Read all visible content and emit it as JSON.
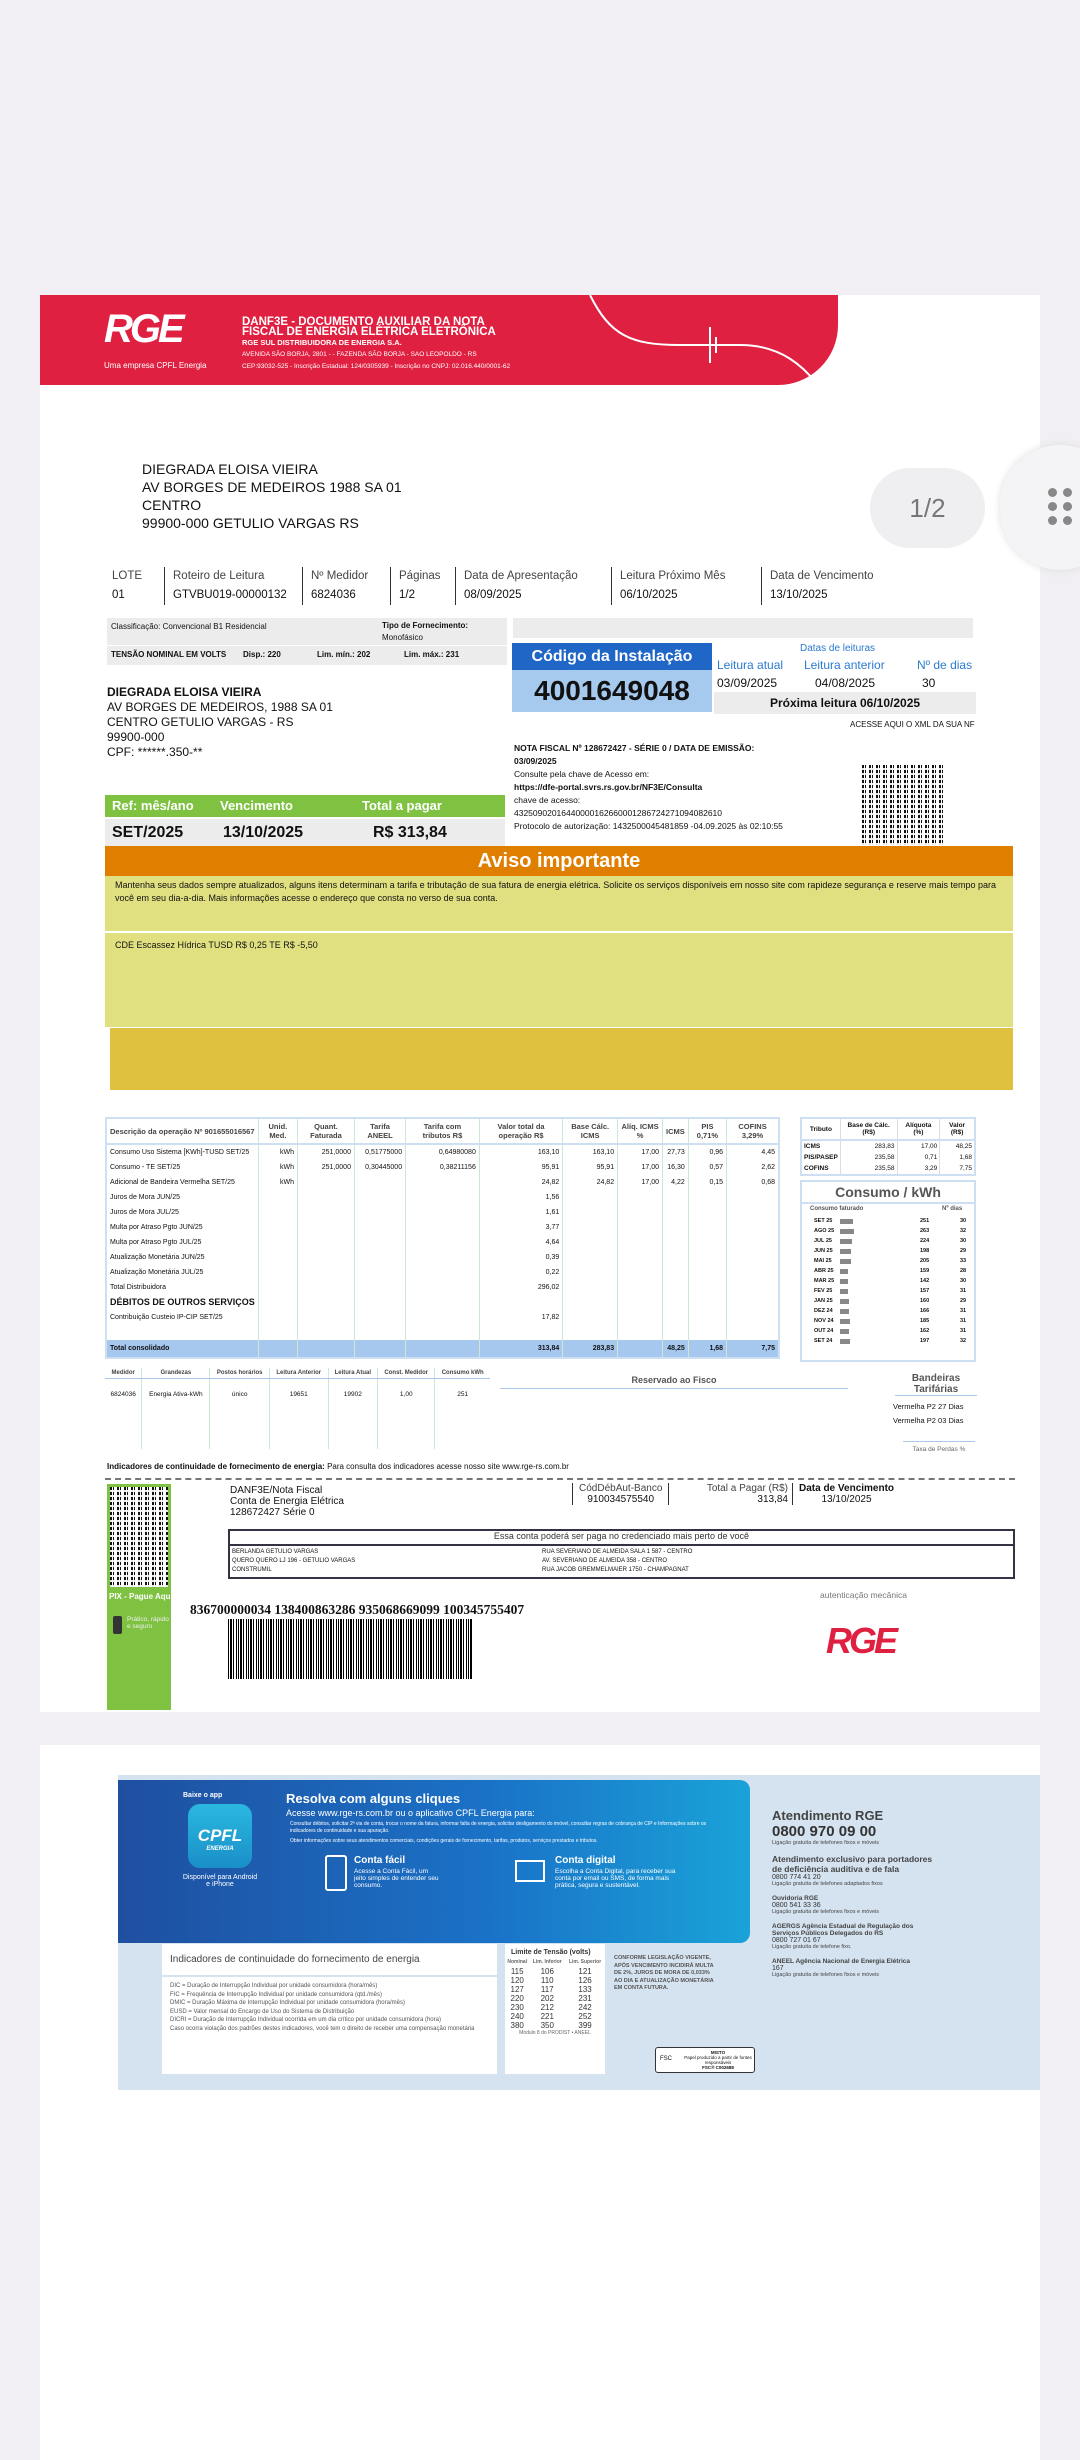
{
  "viewer": {
    "page_indicator": "1/2"
  },
  "header": {
    "logo": "RGE",
    "logo_sub": "Uma empresa CPFL Energia",
    "title1": "DANF3E - DOCUMENTO AUXILIAR DA NOTA",
    "title2": "FISCAL DE ENERGIA ELÉTRICA ELETRÔNICA",
    "company": "RGE SUL DISTRIBUIDORA DE ENERGIA S.A.",
    "address": "AVENIDA SÃO BORJA, 2801 - - FAZENDA SÃO BORJA - SAO LEOPOLDO - RS",
    "cep": "CEP:93032-525 - Inscrição Estadual: 124/0305939 - Inscrição no CNPJ: 02.016.440/0001-62"
  },
  "mail_address": [
    "DIEGRADA ELOISA VIEIRA",
    "AV BORGES DE MEDEIROS 1988 SA 01",
    "CENTRO",
    "99900-000 GETULIO VARGAS RS"
  ],
  "info_row": [
    {
      "label": "LOTE",
      "value": "01"
    },
    {
      "label": "Roteiro de Leitura",
      "value": "GTVBU019-00000132"
    },
    {
      "label": "Nº Medidor",
      "value": "6824036"
    },
    {
      "label": "Páginas",
      "value": "1/2"
    },
    {
      "label": "Data de Apresentação",
      "value": "08/09/2025"
    },
    {
      "label": "Leitura Próximo Mês",
      "value": "06/10/2025"
    },
    {
      "label": "Data de Vencimento",
      "value": "13/10/2025"
    }
  ],
  "classification": {
    "label": "Classificação:",
    "value": "Convencional B1 Residencial",
    "supply_label": "Tipo de Fornecimento:",
    "supply_value": "Monofásico",
    "tension_label": "TENSÃO NOMINAL EM VOLTS",
    "disp": "Disp.: 220",
    "min": "Lim. mín.: 202",
    "max": "Lim. máx.: 231"
  },
  "installation": {
    "label": "Código da Instalação",
    "code": "4001649048"
  },
  "readings": {
    "title": "Datas de leituras",
    "current_label": "Leitura atual",
    "current": "03/09/2025",
    "previous_label": "Leitura anterior",
    "previous": "04/08/2025",
    "days_label": "Nº de dias",
    "days": "30",
    "next": "Próxima leitura  06/10/2025",
    "xml_link": "ACESSE AQUI O XML DA SUA NF"
  },
  "customer": {
    "name": "DIEGRADA ELOISA VIEIRA",
    "street": "AV BORGES DE MEDEIROS, 1988 SA 01",
    "city": "CENTRO GETULIO VARGAS - RS",
    "cep": "99900-000",
    "cpf": "CPF: ******.350-**"
  },
  "nf": {
    "title": "NOTA FISCAL Nº 128672427 - SÉRIE 0 / DATA DE EMISSÃO:",
    "date": "03/09/2025",
    "consult": "Consulte pela chave de Acesso em:",
    "url": "https://dfe-portal.svrs.rs.gov.br/NF3E/Consulta",
    "key_label": "chave de acesso:",
    "key": "43250902016440000162660001286724271094082610",
    "protocol": "Protocolo de autorização: 1432500045481859 -04.09.2025 às 02:10:55"
  },
  "payment": {
    "ref_label": "Ref: mês/ano",
    "ref": "SET/2025",
    "due_label": "Vencimento",
    "due": "13/10/2025",
    "total_label": "Total a pagar",
    "total": "R$ 313,84"
  },
  "notice": {
    "title": "Aviso importante",
    "text": "Mantenha seus dados sempre atualizados, alguns itens determinam a tarifa e tributação de sua fatura de energia elétrica. Solicite os serviços disponíveis em nosso site com rapideze segurança e reserve mais tempo para você em seu dia-a-dia. Mais informações acesse o endereço que consta no verso de sua conta.",
    "cde": "CDE Escassez Hídrica  TUSD R$ 0,25  TE R$ -5,50"
  },
  "items": {
    "headers": [
      "Descrição da operação Nº 901655016567",
      "Unid. Med.",
      "Quant. Faturada",
      "Tarifa ANEEL",
      "Tarifa com tributos R$",
      "Valor total da operação R$",
      "Base Cálc. ICMS",
      "Alíq. ICMS %",
      "ICMS",
      "PIS 0,71%",
      "COFINS 3,29%"
    ],
    "rows": [
      [
        "Consumo Uso Sistema [KWh]-TUSD SET/25",
        "kWh",
        "251,0000",
        "0,51775000",
        "0,64980080",
        "163,10",
        "163,10",
        "17,00",
        "27,73",
        "0,96",
        "4,45"
      ],
      [
        "Consumo - TE SET/25",
        "kWh",
        "251,0000",
        "0,30445000",
        "0,38211156",
        "95,91",
        "95,91",
        "17,00",
        "16,30",
        "0,57",
        "2,62"
      ],
      [
        "Adicional de Bandeira Vermelha SET/25",
        "kWh",
        "",
        "",
        "",
        "24,82",
        "24,82",
        "17,00",
        "4,22",
        "0,15",
        "0,68"
      ],
      [
        "Juros de Mora JUN/25",
        "",
        "",
        "",
        "",
        "1,56",
        "",
        "",
        "",
        "",
        ""
      ],
      [
        "Juros de Mora JUL/25",
        "",
        "",
        "",
        "",
        "1,61",
        "",
        "",
        "",
        "",
        ""
      ],
      [
        "Multa por Atraso Pgto JUN/25",
        "",
        "",
        "",
        "",
        "3,77",
        "",
        "",
        "",
        "",
        ""
      ],
      [
        "Multa por Atraso Pgto JUL/25",
        "",
        "",
        "",
        "",
        "4,64",
        "",
        "",
        "",
        "",
        ""
      ],
      [
        "Atualização Monetária JUN/25",
        "",
        "",
        "",
        "",
        "0,39",
        "",
        "",
        "",
        "",
        ""
      ],
      [
        "Atualização Monetária JUL/25",
        "",
        "",
        "",
        "",
        "0,22",
        "",
        "",
        "",
        "",
        ""
      ],
      [
        "Total Distribuidora",
        "",
        "",
        "",
        "",
        "296,02",
        "",
        "",
        "",
        "",
        ""
      ],
      [
        "DÉBITOS DE OUTROS SERVIÇOS",
        "",
        "",
        "",
        "",
        "",
        "",
        "",
        "",
        "",
        ""
      ],
      [
        "Contribuição Custeio IP-CIP SET/25",
        "",
        "",
        "",
        "",
        "17,82",
        "",
        "",
        "",
        "",
        ""
      ]
    ],
    "total": [
      "Total consolidado",
      "",
      "",
      "",
      "",
      "313,84",
      "283,83",
      "",
      "48,25",
      "1,68",
      "7,75"
    ]
  },
  "taxes": {
    "headers": [
      "Tributo",
      "Base de Cálc. (R$)",
      "Alíquota (%)",
      "Valor (R$)"
    ],
    "rows": [
      [
        "ICMS",
        "283,83",
        "17,00",
        "48,25"
      ],
      [
        "PIS/PASEP",
        "235,58",
        "0,71",
        "1,68"
      ],
      [
        "COFINS",
        "235,58",
        "3,29",
        "7,75"
      ]
    ]
  },
  "consumption": {
    "title": "Consumo / kWh",
    "col1": "Consumo faturado",
    "col2": "Nº dias",
    "rows": [
      [
        "SET 25",
        251,
        "30"
      ],
      [
        "AGO 25",
        263,
        "32"
      ],
      [
        "JUL 25",
        224,
        "30"
      ],
      [
        "JUN 25",
        198,
        "29"
      ],
      [
        "MAI 25",
        205,
        "33"
      ],
      [
        "ABR 25",
        159,
        "28"
      ],
      [
        "MAR 25",
        142,
        "30"
      ],
      [
        "FEV 25",
        157,
        "31"
      ],
      [
        "JAN 25",
        160,
        "29"
      ],
      [
        "DEZ 24",
        166,
        "31"
      ],
      [
        "NOV 24",
        185,
        "31"
      ],
      [
        "OUT 24",
        162,
        "31"
      ],
      [
        "SET 24",
        197,
        "32"
      ]
    ]
  },
  "meter": {
    "headers": [
      "Medidor",
      "Grandezas",
      "Postos horários",
      "Leitura Anterior",
      "Leitura Atual",
      "Const. Medidor",
      "Consumo kWh"
    ],
    "row": [
      "6824036",
      "Energia Ativa-kWh",
      "único",
      "19651",
      "19902",
      "1,00",
      "251"
    ],
    "fisco": "Reservado ao Fisco",
    "flags_title": "Bandeiras Tarifárias",
    "flags": [
      "Vermelha P2  27 Dias",
      "Vermelha P2  03 Dias"
    ],
    "losses": "Taxa de Perdas %"
  },
  "indicators": {
    "label": "Indicadores de continuidade de fornecimento de energia:",
    "text": "Para consulta dos indicadores acesse nosso site www.rge-rs.com.br"
  },
  "slip": {
    "doc1": "DANF3E/Nota Fiscal",
    "doc2": "Conta de Energia Elétrica",
    "doc3": "128672427 Série 0",
    "bank_label": "CódDébAut-Banco",
    "bank": "910034575540",
    "total_label": "Total a Pagar (R$)",
    "total": "313,84",
    "due_label": "Data de Vencimento",
    "due": "13/10/2025",
    "agents_title": "Essa conta poderá ser paga no credenciado mais perto de você",
    "agents": [
      [
        "BERLANDA  GETULIO VARGAS",
        "RUA SEVERIANO DE ALMEIDA SALA 1 587 - CENTRO"
      ],
      [
        "QUERO QUERO LJ 196 - GETULIO VARGAS",
        "AV. SEVERIANO DE ALMEIDA 358 - CENTRO"
      ],
      [
        "CONSTRUMIL",
        "RUA JACOB GREMMELMAIER 1750 - CHAMPAGNAT"
      ]
    ],
    "auth": "autenticação mecânica",
    "barcode_number": "836700000034 138400863286 935068669099 100345755407",
    "pix_title": "PIX - Pague Aqui",
    "pix_text": "Prático, rápido e seguro",
    "logo": "RGE"
  },
  "page2": {
    "app_label": "Baixe o app",
    "app_name": "CPFL",
    "app_sub": "ENERGIA",
    "app_avail": "Disponível para Android e iPhone",
    "title": "Resolva com alguns cliques",
    "subtitle": "Acesse www.rge-rs.com.br ou o aplicativo CPFL Energia para:",
    "bullets": [
      "Consultar débitos, solicitar 2ª via de conta, trocar o nome da fatura, informar falta de energia, solicitar desligamento do imóvel, consultar regras de cobrança de CIP e Informações sobre os indicadores de continuidade e sua apuração.",
      "Obter informações sobre seus atendimentos comerciais, condições gerais de fornecimento, tarifas, produtos, serviços prestados e tributos."
    ],
    "easy_title": "Conta fácil",
    "easy_text": "Acesse a Conta Fácil, um jeito simples de entender seu consumo.",
    "digital_title": "Conta digital",
    "digital_text": "Escolha a Conta Digital, para receber sua conta por email ou SMS, de forma mais prática, segura e sustentável.",
    "contacts": [
      {
        "title": "Atendimento RGE",
        "phone": "0800 970 09 00",
        "note": "Ligação gratuita de telefones fixos e móveis"
      },
      {
        "title": "Atendimento exclusivo para portadores de deficiência auditiva e de fala",
        "phone": "0800 774 41 20",
        "note": "Ligação gratuita de telefones adaptados fixos"
      },
      {
        "title": "Ouvidoria RGE",
        "phone": "0800 541 33 36",
        "note": "Ligação gratuita de telefones fixos e móveis"
      },
      {
        "title": "AGERGS Agência Estadual de Regulação dos Serviços Públicos Delegados do RS",
        "phone": "0800 727 01 67",
        "note": "Ligação gratuita de telefone fixo."
      },
      {
        "title": "ANEEL Agência Nacional de Energia Elétrica",
        "phone": "167",
        "note": "Ligação gratuita de telefones fixos e móveis"
      }
    ],
    "ind_title": "Indicadores de continuidade do fornecimento de energia",
    "ind_rows": [
      "DIC  =  Duração de Interrupção Individual por unidade consumidora (hora/mês)",
      "FIC  =  Frequência de Interrupção Individual por unidade consumidora (qtd./mês)",
      "DMIC  =  Duração Máxima de Interrupção Individual por unidade consumidora (hora/mês)",
      "EUSD  =  Valor mensal do Encargo de Uso do Sistema de Distribuição",
      "DICRI  =  Duração de Interrupção Individual ocorrida em um dia crítico por unidade consumidora (hora)"
    ],
    "ind_note": "Caso ocorra violação dos padrões destes indicadores, você tem o direito de receber uma compensação monetária",
    "lim_title": "Limite de Tensão (volts)",
    "lim_headers": [
      "Nominal",
      "Lim. Inferior",
      "Lim. Superior"
    ],
    "lim_rows": [
      [
        "115",
        "106",
        "121"
      ],
      [
        "120",
        "110",
        "126"
      ],
      [
        "127",
        "117",
        "133"
      ],
      [
        "220",
        "202",
        "231"
      ],
      [
        "230",
        "212",
        "242"
      ],
      [
        "240",
        "221",
        "252"
      ],
      [
        "380",
        "350",
        "399"
      ]
    ],
    "lim_note": "Módulo 8 do PRODIST • ANEEL",
    "legal": "CONFORME LEGISLAÇÃO VIGENTE, APÓS VENCIMENTO INCIDIRÁ MULTA DE 2%, JUROS DE MORA DE 0,033% AO DIA E ATUALIZAÇÃO MONETÁRIA EM CONTA FUTURA.",
    "fsc_title": "MISTO",
    "fsc_text": "Papel produzido a partir de fontes responsáveis",
    "fsc_code": "FSC® C002688",
    "fsc_logo": "FSC"
  },
  "colors": {
    "brand_red": "#e02040",
    "green": "#7fc242",
    "orange": "#e07e00",
    "blue": "#1f66c6",
    "yellow": "#e1e081"
  }
}
